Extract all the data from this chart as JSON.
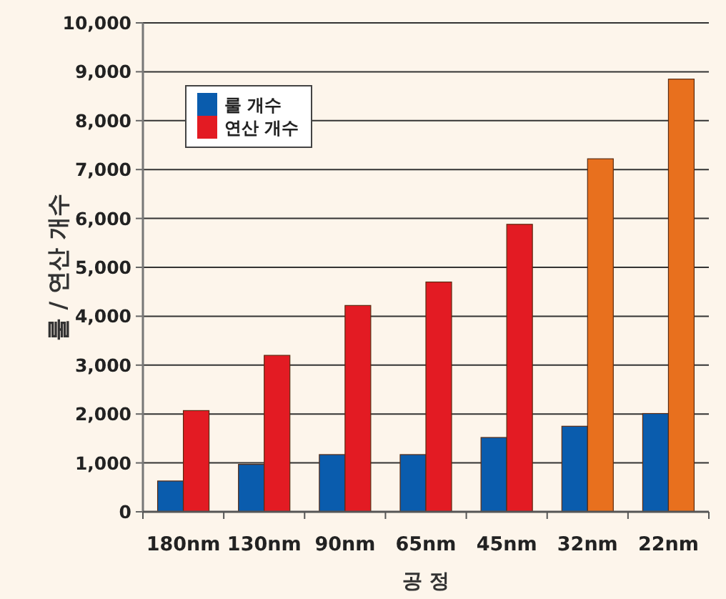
{
  "chart_data": {
    "type": "bar",
    "xlabel": "공 정",
    "ylabel": "룰 / 연산 개수",
    "categories": [
      "180nm",
      "130nm",
      "90nm",
      "65nm",
      "45nm",
      "32nm",
      "22nm"
    ],
    "series": [
      {
        "name": "룰 개수",
        "color": "#0a5cad",
        "values": [
          630,
          970,
          1170,
          1170,
          1520,
          1750,
          2010
        ]
      },
      {
        "name": "연산 개수",
        "color": "#e31b23",
        "colors": [
          "#e31b23",
          "#e31b23",
          "#e31b23",
          "#e31b23",
          "#e31b23",
          "#e8701e",
          "#e8701e"
        ],
        "values": [
          2070,
          3200,
          4220,
          4700,
          5880,
          7220,
          8850
        ]
      }
    ],
    "ylim": [
      0,
      10000
    ],
    "yticks": [
      {
        "value": 0,
        "label": "0"
      },
      {
        "value": 1000,
        "label": "1,000"
      },
      {
        "value": 2000,
        "label": "2,000"
      },
      {
        "value": 3000,
        "label": "3,000"
      },
      {
        "value": 4000,
        "label": "4,000"
      },
      {
        "value": 5000,
        "label": "5,000"
      },
      {
        "value": 6000,
        "label": "6,000"
      },
      {
        "value": 7000,
        "label": "7,000"
      },
      {
        "value": 8000,
        "label": "8,000"
      },
      {
        "value": 9000,
        "label": "9,000"
      },
      {
        "value": 10000,
        "label": "10,000"
      }
    ],
    "grid": "y",
    "legend": "top left"
  }
}
